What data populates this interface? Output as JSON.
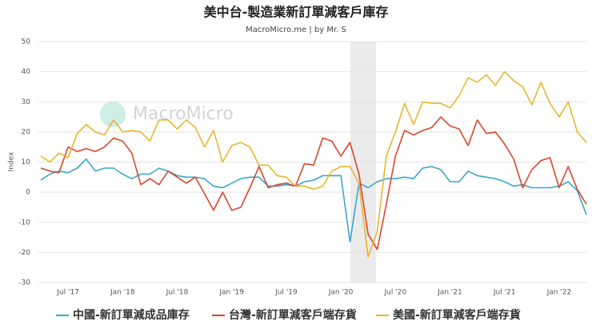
{
  "chart_data": {
    "type": "line",
    "title": "美中台-製造業新訂單減客戶庫存",
    "subtitle": "MacroMicro.me | by Mr. S",
    "watermark": "MacroMicro",
    "y_label": "Index",
    "categories": [
      null,
      null,
      null,
      "Jul '17",
      null,
      null,
      null,
      null,
      null,
      "Jan '18",
      null,
      null,
      null,
      null,
      null,
      "Jul '18",
      null,
      null,
      null,
      null,
      null,
      "Jan '19",
      null,
      null,
      null,
      null,
      null,
      "Jul '19",
      null,
      null,
      null,
      null,
      null,
      "Jan '20",
      null,
      null,
      null,
      null,
      null,
      "Jul '20",
      null,
      null,
      null,
      null,
      null,
      "Jan '21",
      null,
      null,
      null,
      null,
      null,
      "Jul '21",
      null,
      null,
      null,
      null,
      null,
      "Jan '22",
      null,
      null,
      null
    ],
    "ylim": [
      -30,
      50
    ],
    "yticks": [
      -30,
      -20,
      -10,
      0,
      10,
      20,
      30,
      40,
      50
    ],
    "grid": true,
    "series": [
      {
        "name": "中國-新訂單減成品庫存",
        "color": "#3aa6cc",
        "values": [
          4,
          6,
          7,
          6.5,
          8,
          11,
          7,
          8,
          8,
          6,
          4.5,
          6,
          6,
          8,
          7,
          5.5,
          5,
          5,
          4.5,
          2,
          1.5,
          3,
          4.5,
          5,
          5,
          2,
          2,
          2.5,
          2,
          3.5,
          4,
          5.5,
          5.5,
          5.5,
          -16.5,
          3,
          1.5,
          3.5,
          4.5,
          4.5,
          5,
          4.5,
          8,
          8.5,
          7.5,
          3.5,
          3.5,
          7,
          5.5,
          5,
          4.5,
          3.5,
          2,
          2.5,
          1.5,
          1.5,
          1.5,
          2,
          3.5,
          0.5,
          -7.5
        ]
      },
      {
        "name": "台灣-新訂單減客戶端存貨",
        "color": "#d9472b",
        "values": [
          8,
          7,
          6.5,
          15,
          13.5,
          14.5,
          13.5,
          15,
          18,
          17,
          13,
          2.5,
          4.5,
          2.5,
          7,
          5,
          3,
          5,
          -0.5,
          -6,
          0,
          -6,
          -5,
          1.5,
          8.5,
          1.5,
          2.5,
          3,
          2,
          9.5,
          9,
          18,
          17,
          12,
          16.5,
          6,
          -14,
          -19,
          -4,
          12,
          20.5,
          19,
          20.5,
          21.5,
          25,
          22,
          21,
          15.5,
          24,
          19.5,
          20,
          16,
          11,
          1.5,
          7.5,
          10.5,
          11.5,
          1.5,
          8.5,
          1,
          -4
        ]
      },
      {
        "name": "美國-新訂單減客戶端存貨",
        "color": "#e8b52d",
        "values": [
          12,
          10,
          13,
          11.5,
          19.5,
          22.5,
          20,
          19,
          24,
          20,
          20.5,
          20,
          17,
          24,
          24,
          21,
          24,
          21.5,
          15,
          20.5,
          10,
          15.5,
          16.5,
          15,
          9,
          9,
          5.5,
          5,
          2,
          2,
          1,
          2,
          7,
          8.5,
          8.5,
          3,
          -21.5,
          -13,
          12,
          20,
          29.5,
          22.5,
          30,
          29.5,
          29.5,
          28,
          32,
          38,
          36.5,
          39,
          35.5,
          40,
          37,
          35,
          29,
          36.5,
          29.5,
          25,
          30,
          20,
          16.5
        ]
      }
    ]
  }
}
